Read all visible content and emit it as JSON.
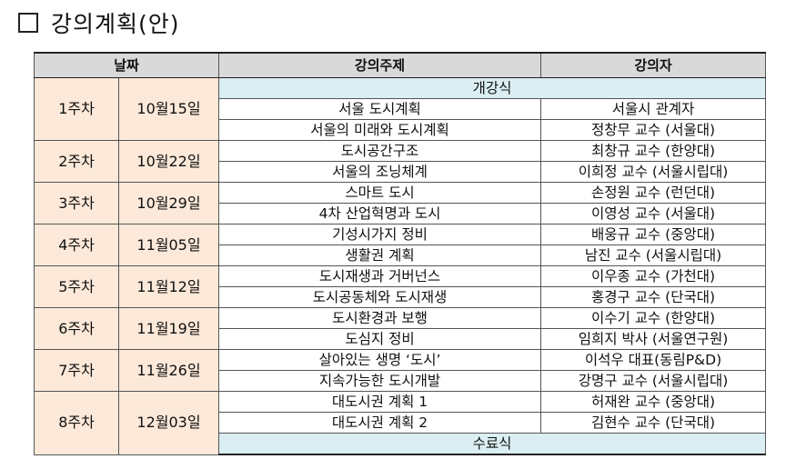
{
  "heading": {
    "title": "강의계획(안)"
  },
  "table": {
    "headers": {
      "date": "날짜",
      "topic": "강의주제",
      "lecturer": "강의자"
    },
    "opening": "개강식",
    "closing": "수료식",
    "weeks": [
      {
        "week": "1주차",
        "date": "10월15일",
        "sessions": [
          {
            "topic": "서울 도시계획",
            "lecturer": "서울시 관계자"
          },
          {
            "topic": "서울의 미래와 도시계획",
            "lecturer": "정창무 교수 (서울대)"
          }
        ]
      },
      {
        "week": "2주차",
        "date": "10월22일",
        "sessions": [
          {
            "topic": "도시공간구조",
            "lecturer": "최창규 교수 (한양대)"
          },
          {
            "topic": "서울의 조닝체계",
            "lecturer": "이희정 교수 (서울시립대)"
          }
        ]
      },
      {
        "week": "3주차",
        "date": "10월29일",
        "sessions": [
          {
            "topic": "스마트 도시",
            "lecturer": "손정원 교수 (런던대)"
          },
          {
            "topic": "4차 산업혁명과 도시",
            "lecturer": "이영성 교수 (서울대)"
          }
        ]
      },
      {
        "week": "4주차",
        "date": "11월05일",
        "sessions": [
          {
            "topic": "기성시가지 정비",
            "lecturer": "배웅규 교수 (중앙대)"
          },
          {
            "topic": "생활권 계획",
            "lecturer": "남진 교수 (서울시립대)"
          }
        ]
      },
      {
        "week": "5주차",
        "date": "11월12일",
        "sessions": [
          {
            "topic": "도시재생과 거버넌스",
            "lecturer": "이우종 교수 (가천대)"
          },
          {
            "topic": "도시공동체와 도시재생",
            "lecturer": "홍경구 교수 (단국대)"
          }
        ]
      },
      {
        "week": "6주차",
        "date": "11월19일",
        "sessions": [
          {
            "topic": "도시환경과 보행",
            "lecturer": "이수기 교수 (한양대)"
          },
          {
            "topic": "도심지 정비",
            "lecturer": "임희지 박사 (서울연구원)"
          }
        ]
      },
      {
        "week": "7주차",
        "date": "11월26일",
        "sessions": [
          {
            "topic": "살아있는 생명 ‘도시’",
            "lecturer": "이석우 대표(동림P&D)"
          },
          {
            "topic": "지속가능한 도시개발",
            "lecturer": "강명구 교수 (서울시립대)"
          }
        ]
      },
      {
        "week": "8주차",
        "date": "12월03일",
        "sessions": [
          {
            "topic": "대도시권 계획 1",
            "lecturer": "허재완 교수 (중앙대)"
          },
          {
            "topic": "대도시권 계획 2",
            "lecturer": "김현수 교수 (단국대)"
          }
        ]
      }
    ]
  }
}
